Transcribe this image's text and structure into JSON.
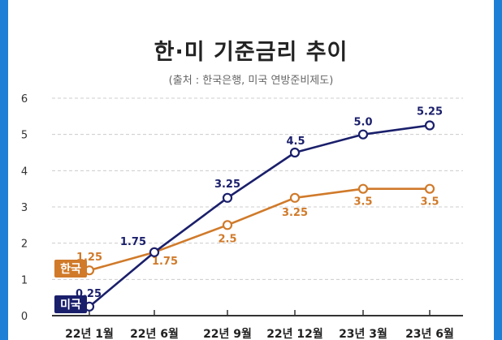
{
  "header": {
    "title": "한·미 기준금리 추이",
    "source": "(출처 : 한국은행, 미국 연방준비제도)"
  },
  "colors": {
    "korea": "#d07a2a",
    "usa": "#1a1f6b",
    "grid": "#cccccc",
    "axis": "#333333",
    "background": "#1e7fd6"
  },
  "chart_data": {
    "type": "line",
    "title": "한·미 기준금리 추이",
    "categories": [
      "22년 1월",
      "22년 6월",
      "22년 9월",
      "22년 12월",
      "23년 3월",
      "23년 6월"
    ],
    "ylim": [
      0,
      6
    ],
    "yticks": [
      "0",
      "1",
      "2",
      "3",
      "4",
      "5",
      "6"
    ],
    "grid": "horizontal-dashed",
    "series": [
      {
        "name": "한국",
        "color": "#d07a2a",
        "values": [
          1.25,
          1.75,
          2.5,
          3.25,
          3.5,
          3.5
        ],
        "labels": [
          "1.25",
          "1.75",
          "2.5",
          "3.25",
          "3.5",
          "3.5"
        ]
      },
      {
        "name": "미국",
        "color": "#1a1f6b",
        "values": [
          0.25,
          1.75,
          3.25,
          4.5,
          5.0,
          5.25
        ],
        "labels": [
          "0.25",
          "1.75",
          "3.25",
          "4.5",
          "5.0",
          "5.25"
        ]
      }
    ]
  }
}
